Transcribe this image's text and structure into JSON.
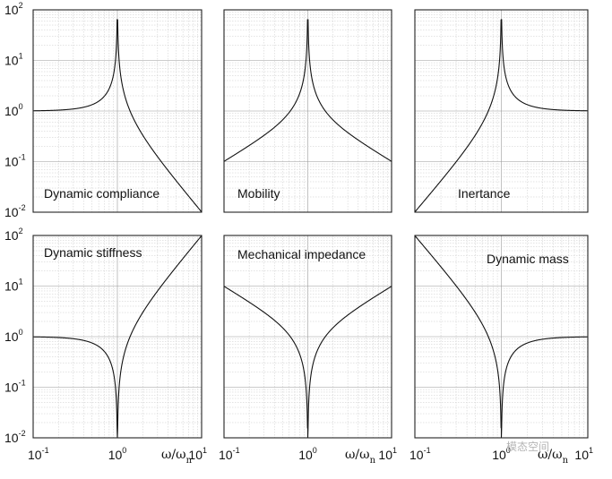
{
  "chart_data": [
    {
      "id": "p1",
      "type": "line",
      "title": "Dynamic compliance",
      "xscale": "log",
      "yscale": "log",
      "xlim": [
        0.1,
        10
      ],
      "ylim": [
        0.01,
        100
      ],
      "xlabel": "",
      "ylabel": "",
      "grid": true,
      "curve": "1/|1-r^2|",
      "x": [
        0.1,
        0.3,
        0.5,
        0.8,
        0.95,
        1.0,
        1.05,
        1.5,
        3,
        10
      ],
      "y": [
        1.01,
        1.1,
        1.33,
        2.78,
        10.3,
        40,
        9.8,
        0.8,
        0.125,
        0.0101
      ]
    },
    {
      "id": "p2",
      "type": "line",
      "title": "Mobility",
      "xscale": "log",
      "yscale": "log",
      "xlim": [
        0.1,
        10
      ],
      "ylim": [
        0.01,
        100
      ],
      "xlabel": "",
      "ylabel": "",
      "grid": true,
      "curve": "r/|1-r^2|",
      "x": [
        0.1,
        0.3,
        0.5,
        0.8,
        0.95,
        1.0,
        1.05,
        1.5,
        3,
        10
      ],
      "y": [
        0.101,
        0.33,
        0.67,
        2.22,
        9.7,
        40,
        10.2,
        1.2,
        0.375,
        0.101
      ]
    },
    {
      "id": "p3",
      "type": "line",
      "title": "Inertance",
      "xscale": "log",
      "yscale": "log",
      "xlim": [
        0.1,
        10
      ],
      "ylim": [
        0.01,
        100
      ],
      "xlabel": "",
      "ylabel": "",
      "grid": true,
      "curve": "r^2/|1-r^2|",
      "x": [
        0.1,
        0.3,
        0.5,
        0.8,
        0.95,
        1.0,
        1.05,
        1.5,
        3,
        10
      ],
      "y": [
        0.0101,
        0.099,
        0.333,
        1.78,
        9.3,
        60,
        10.8,
        1.8,
        1.125,
        1.01
      ]
    },
    {
      "id": "p4",
      "type": "line",
      "title": "Dynamic stiffness",
      "xscale": "log",
      "yscale": "log",
      "xlim": [
        0.1,
        10
      ],
      "ylim": [
        0.01,
        100
      ],
      "xlabel": "",
      "ylabel": "",
      "grid": true,
      "curve": "|1-r^2|",
      "x": [
        0.1,
        0.3,
        0.5,
        0.8,
        0.95,
        1.0,
        1.05,
        1.5,
        3,
        10
      ],
      "y": [
        0.99,
        0.91,
        0.75,
        0.36,
        0.0975,
        0.01,
        0.1025,
        1.25,
        8,
        99
      ]
    },
    {
      "id": "p5",
      "type": "line",
      "title": "Mechanical impedance",
      "xscale": "log",
      "yscale": "log",
      "xlim": [
        0.1,
        10
      ],
      "ylim": [
        0.01,
        100
      ],
      "xlabel": "ω/ω_n",
      "ylabel": "",
      "grid": true,
      "curve": "|1-r^2|/r",
      "x": [
        0.1,
        0.3,
        0.5,
        0.8,
        0.95,
        1.0,
        1.05,
        1.5,
        3,
        10
      ],
      "y": [
        9.9,
        3.03,
        1.5,
        0.45,
        0.103,
        0.025,
        0.098,
        0.83,
        2.67,
        9.9
      ]
    },
    {
      "id": "p6",
      "type": "line",
      "title": "Dynamic mass",
      "xscale": "log",
      "yscale": "log",
      "xlim": [
        0.1,
        10
      ],
      "ylim": [
        0.01,
        100
      ],
      "xlabel": "ω/ω_n",
      "ylabel": "",
      "grid": true,
      "curve": "|1-r^2|/r^2",
      "x": [
        0.1,
        0.3,
        0.5,
        0.8,
        0.95,
        1.0,
        1.05,
        1.5,
        3,
        10
      ],
      "y": [
        99,
        10.1,
        3,
        0.56,
        0.108,
        0.017,
        0.093,
        0.56,
        0.89,
        0.99
      ]
    }
  ],
  "ticks": {
    "y": [
      {
        "base": "10",
        "exp": "2"
      },
      {
        "base": "10",
        "exp": "1"
      },
      {
        "base": "10",
        "exp": "0"
      },
      {
        "base": "10",
        "exp": "-1"
      },
      {
        "base": "10",
        "exp": "-2"
      }
    ],
    "x": [
      {
        "base": "10",
        "exp": "-1"
      },
      {
        "base": "10",
        "exp": "0"
      },
      {
        "base": "10",
        "exp": "1"
      }
    ]
  },
  "xaxis_label": {
    "main": "ω/ω",
    "sub": "n"
  },
  "watermark": "模态空间"
}
